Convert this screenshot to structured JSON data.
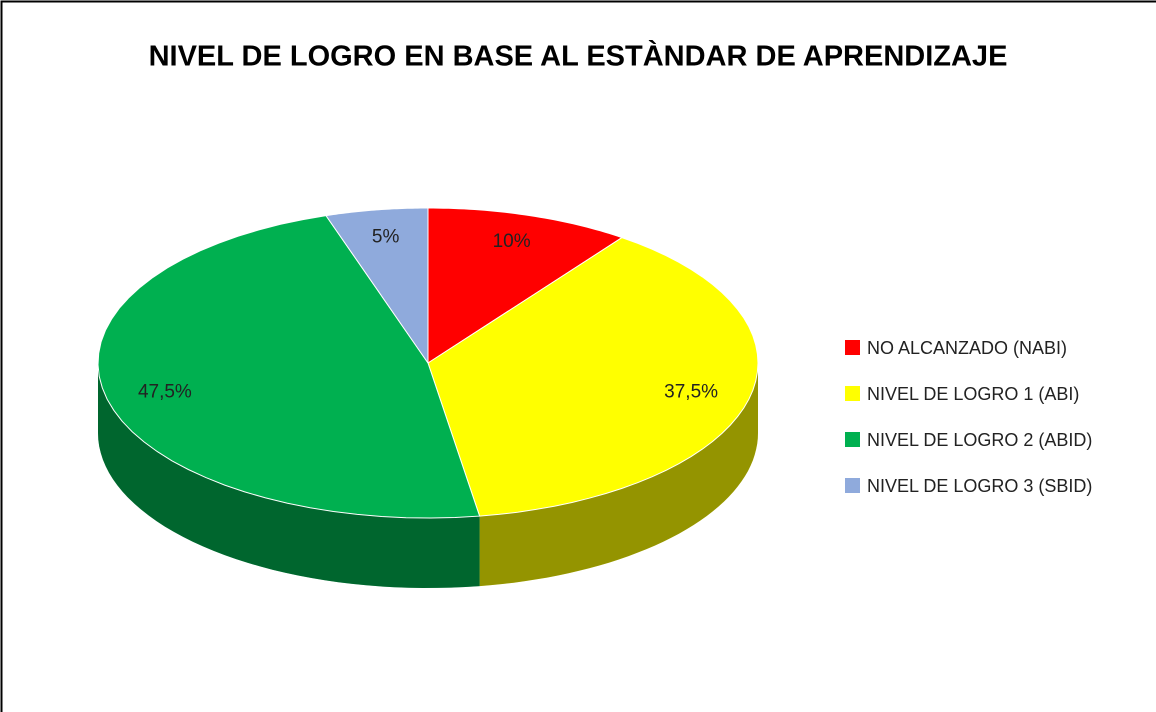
{
  "chart_data": {
    "type": "pie",
    "title": "NIVEL DE LOGRO EN BASE AL ESTÀNDAR DE APRENDIZAJE",
    "categories": [
      "NO ALCANZADO (NABI)",
      "NIVEL DE LOGRO 1 (ABI)",
      "NIVEL DE LOGRO 2 (ABID)",
      "NIVEL DE LOGRO 3 (SBID)"
    ],
    "values": [
      10,
      37.5,
      47.5,
      5
    ],
    "value_labels": [
      "10%",
      "37,5%",
      "47,5%",
      "5%"
    ],
    "colors": [
      "#ff0000",
      "#ffff00",
      "#00b050",
      "#8faadc"
    ]
  }
}
